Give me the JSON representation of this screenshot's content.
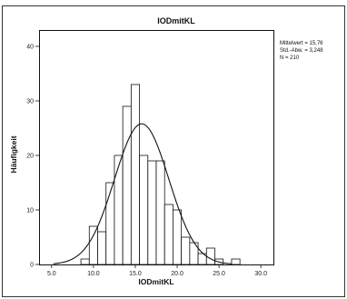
{
  "chart_data": {
    "type": "bar",
    "title": "IODmitKL",
    "xlabel": "IODmitKL",
    "ylabel": "Häufigkeit",
    "xlim": [
      3.5,
      31.5
    ],
    "ylim": [
      0,
      43
    ],
    "x_ticks": [
      5.0,
      10.0,
      15.0,
      20.0,
      25.0,
      30.0
    ],
    "x_tick_labels": [
      "5.0",
      "10.0",
      "15.0",
      "20.0",
      "25.0",
      "30.0"
    ],
    "y_ticks": [
      0,
      10,
      20,
      30,
      40
    ],
    "y_tick_labels": [
      "0",
      "10",
      "20",
      "30",
      "40"
    ],
    "bin_width": 1,
    "bins": [
      {
        "x0": 8.5,
        "value": 1
      },
      {
        "x0": 9.5,
        "value": 7
      },
      {
        "x0": 10.5,
        "value": 6
      },
      {
        "x0": 11.5,
        "value": 15
      },
      {
        "x0": 12.5,
        "value": 20
      },
      {
        "x0": 13.5,
        "value": 29
      },
      {
        "x0": 14.5,
        "value": 33
      },
      {
        "x0": 15.5,
        "value": 20
      },
      {
        "x0": 16.5,
        "value": 19
      },
      {
        "x0": 17.5,
        "value": 19
      },
      {
        "x0": 18.5,
        "value": 11
      },
      {
        "x0": 19.5,
        "value": 10
      },
      {
        "x0": 20.5,
        "value": 5
      },
      {
        "x0": 21.5,
        "value": 4
      },
      {
        "x0": 22.5,
        "value": 2
      },
      {
        "x0": 23.5,
        "value": 3
      },
      {
        "x0": 24.5,
        "value": 1
      },
      {
        "x0": 26.5,
        "value": 1
      }
    ],
    "normal_curve": {
      "mean": 15.76,
      "sd": 3.248,
      "n": 210
    },
    "grid": false,
    "stats_labels": [
      "Mittelwert = 15,76",
      "Std.-Abw. = 3,248",
      "N = 210"
    ]
  },
  "colors": {
    "bar_fill": "#ffffff",
    "bar_stroke": "#111111",
    "curve": "#111111",
    "axis": "#111111",
    "frame": "#333333"
  }
}
